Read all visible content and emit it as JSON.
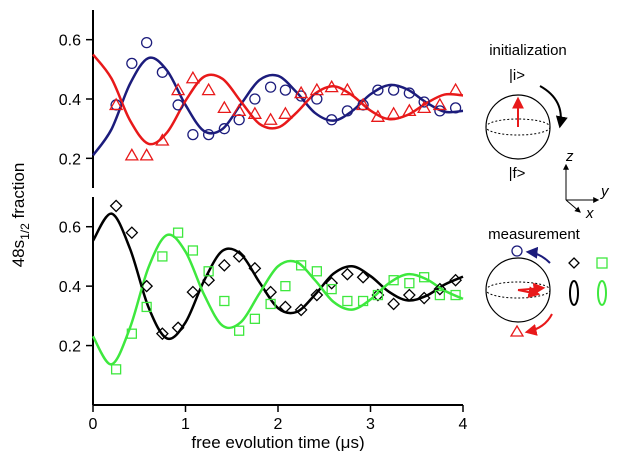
{
  "chart_data": [
    {
      "type": "scatter",
      "xlim": [
        0,
        4
      ],
      "ylim": [
        0.1,
        0.7
      ],
      "yticks": [
        0.2,
        0.4,
        0.6
      ],
      "series": [
        {
          "marker": "circle",
          "color": "#1c1c7c",
          "x": [
            0.25,
            0.42,
            0.58,
            0.75,
            0.92,
            1.08,
            1.25,
            1.42,
            1.58,
            1.75,
            1.92,
            2.08,
            2.25,
            2.42,
            2.58,
            2.75,
            2.92,
            3.08,
            3.25,
            3.42,
            3.58,
            3.75,
            3.92
          ],
          "values": [
            0.38,
            0.52,
            0.59,
            0.49,
            0.38,
            0.28,
            0.28,
            0.3,
            0.33,
            0.4,
            0.44,
            0.43,
            0.41,
            0.4,
            0.33,
            0.36,
            0.38,
            0.43,
            0.43,
            0.42,
            0.39,
            0.36,
            0.37
          ]
        },
        {
          "marker": "triangle",
          "color": "#e8191a",
          "x": [
            0.25,
            0.42,
            0.58,
            0.75,
            0.92,
            1.08,
            1.25,
            1.42,
            1.58,
            1.75,
            1.92,
            2.08,
            2.25,
            2.42,
            2.58,
            2.75,
            2.92,
            3.08,
            3.25,
            3.42,
            3.58,
            3.75,
            3.92
          ],
          "values": [
            0.38,
            0.21,
            0.21,
            0.26,
            0.43,
            0.47,
            0.43,
            0.37,
            0.36,
            0.35,
            0.33,
            0.35,
            0.42,
            0.43,
            0.44,
            0.43,
            0.38,
            0.34,
            0.35,
            0.36,
            0.37,
            0.38,
            0.43
          ]
        },
        {
          "marker": "line",
          "color": "#1c1c7c",
          "x": [
            0,
            0.2,
            0.4,
            0.6,
            0.8,
            1.0,
            1.2,
            1.4,
            1.6,
            1.8,
            2.0,
            2.2,
            2.4,
            2.6,
            2.8,
            3.0,
            3.2,
            3.4,
            3.6,
            3.8,
            4.0
          ],
          "values": [
            0.21,
            0.298,
            0.451,
            0.538,
            0.496,
            0.38,
            0.292,
            0.299,
            0.383,
            0.464,
            0.478,
            0.423,
            0.353,
            0.327,
            0.359,
            0.416,
            0.447,
            0.432,
            0.389,
            0.357,
            0.36
          ]
        },
        {
          "marker": "line",
          "color": "#e8191a",
          "x": [
            0,
            0.2,
            0.4,
            0.6,
            0.8,
            1.0,
            1.2,
            1.4,
            1.6,
            1.8,
            2.0,
            2.2,
            2.4,
            2.6,
            2.8,
            3.0,
            3.2,
            3.4,
            3.6,
            3.8,
            4.0
          ],
          "values": [
            0.55,
            0.469,
            0.328,
            0.249,
            0.287,
            0.394,
            0.475,
            0.468,
            0.391,
            0.316,
            0.304,
            0.354,
            0.418,
            0.443,
            0.413,
            0.361,
            0.332,
            0.346,
            0.385,
            0.415,
            0.412
          ]
        }
      ]
    },
    {
      "type": "scatter",
      "xlim": [
        0,
        4
      ],
      "ylim": [
        0,
        0.7
      ],
      "yticks": [
        0.2,
        0.4,
        0.6
      ],
      "xticks": [
        0,
        1,
        2,
        3,
        4
      ],
      "xlabel": "free evolution time (μs)",
      "series": [
        {
          "marker": "diamond",
          "color": "#000000",
          "x": [
            0.25,
            0.42,
            0.58,
            0.75,
            0.92,
            1.08,
            1.25,
            1.42,
            1.58,
            1.75,
            1.92,
            2.08,
            2.25,
            2.42,
            2.58,
            2.75,
            2.92,
            3.08,
            3.25,
            3.42,
            3.58,
            3.75,
            3.92
          ],
          "values": [
            0.67,
            0.58,
            0.4,
            0.24,
            0.26,
            0.38,
            0.42,
            0.47,
            0.5,
            0.46,
            0.38,
            0.33,
            0.32,
            0.37,
            0.41,
            0.44,
            0.43,
            0.37,
            0.34,
            0.37,
            0.36,
            0.39,
            0.42
          ]
        },
        {
          "marker": "square",
          "color": "#3ee83e",
          "x": [
            0.25,
            0.42,
            0.58,
            0.75,
            0.92,
            1.08,
            1.25,
            1.42,
            1.58,
            1.75,
            1.92,
            2.08,
            2.25,
            2.42,
            2.58,
            2.75,
            2.92,
            3.08,
            3.25,
            3.42,
            3.58,
            3.75,
            3.92
          ],
          "values": [
            0.12,
            0.24,
            0.33,
            0.5,
            0.58,
            0.52,
            0.45,
            0.35,
            0.25,
            0.29,
            0.34,
            0.4,
            0.47,
            0.45,
            0.39,
            0.35,
            0.35,
            0.37,
            0.42,
            0.41,
            0.43,
            0.37,
            0.37
          ]
        },
        {
          "marker": "line",
          "color": "#000000",
          "x": [
            0,
            0.2,
            0.4,
            0.6,
            0.8,
            1.0,
            1.2,
            1.4,
            1.6,
            1.8,
            2.0,
            2.2,
            2.4,
            2.6,
            2.8,
            3.0,
            3.2,
            3.4,
            3.6,
            3.8,
            4.0
          ],
          "values": [
            0.553,
            0.644,
            0.526,
            0.329,
            0.224,
            0.278,
            0.418,
            0.519,
            0.507,
            0.413,
            0.326,
            0.313,
            0.371,
            0.442,
            0.467,
            0.434,
            0.381,
            0.352,
            0.367,
            0.405,
            0.432
          ]
        },
        {
          "marker": "line",
          "color": "#3ee83e",
          "x": [
            0,
            0.2,
            0.4,
            0.6,
            0.8,
            1.0,
            1.2,
            1.4,
            1.6,
            1.8,
            2.0,
            2.2,
            2.4,
            2.6,
            2.8,
            3.0,
            3.2,
            3.4,
            3.6,
            3.8,
            4.0
          ],
          "values": [
            0.231,
            0.137,
            0.26,
            0.463,
            0.572,
            0.516,
            0.372,
            0.267,
            0.279,
            0.376,
            0.467,
            0.481,
            0.42,
            0.347,
            0.321,
            0.355,
            0.41,
            0.44,
            0.424,
            0.385,
            0.357
          ]
        }
      ]
    }
  ],
  "ylabel": {
    "text": "48s",
    "subscript": "1/2",
    "suffix": " fraction"
  },
  "schematic": {
    "initialization": "initialization",
    "initial_state": "|i>",
    "final_state": "|f>",
    "axis_z": "z",
    "axis_y": "y",
    "axis_x": "x",
    "measurement": "measurement"
  }
}
